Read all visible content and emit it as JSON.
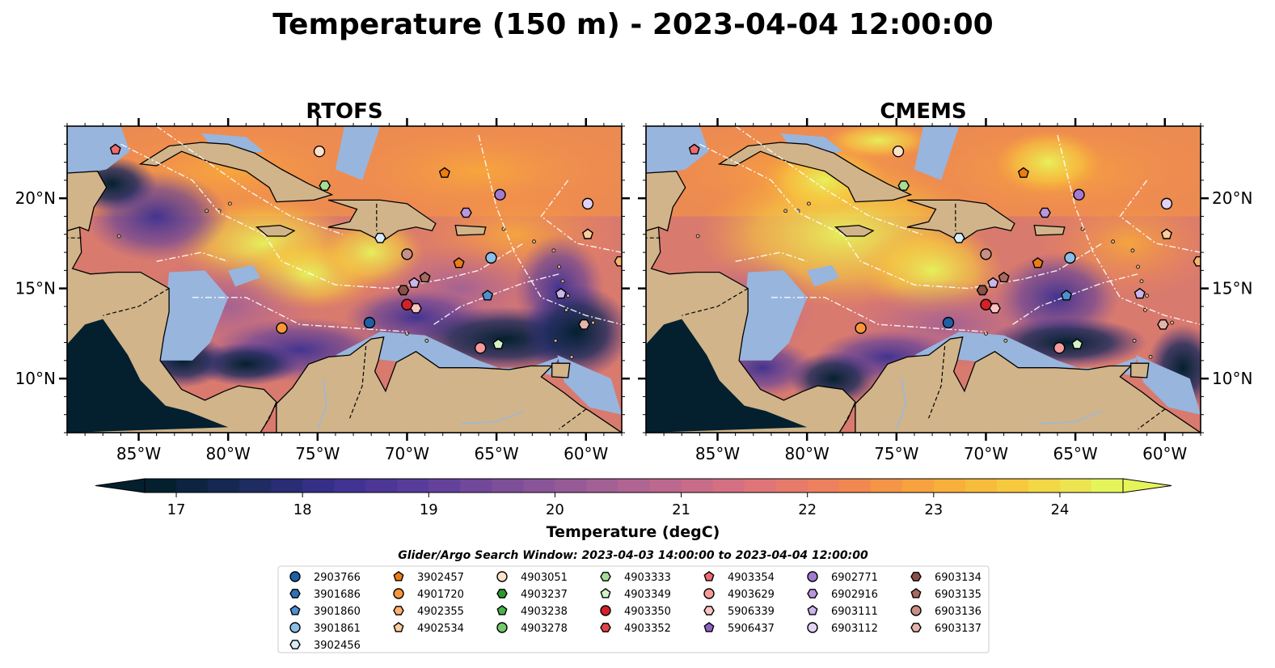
{
  "title": "Temperature (150 m) - 2023-04-04 12:00:00",
  "panels": [
    {
      "title": "RTOFS",
      "variant": "rtofs"
    },
    {
      "title": "CMEMS",
      "variant": "cmems"
    }
  ],
  "axes": {
    "lon_ticks": [
      "85°W",
      "80°W",
      "75°W",
      "70°W",
      "65°W",
      "60°W"
    ],
    "lat_ticks": [
      "20°N",
      "15°N",
      "10°N"
    ],
    "lon_tick_values": [
      -85,
      -80,
      -75,
      -70,
      -65,
      -60
    ],
    "lat_tick_values": [
      20,
      15,
      10
    ],
    "lon_range": [
      -89,
      -58
    ],
    "lat_range": [
      7,
      24
    ]
  },
  "colorbar": {
    "label": "Temperature (degC)",
    "ticks": [
      "17",
      "18",
      "19",
      "20",
      "21",
      "22",
      "23",
      "24"
    ],
    "range": [
      16.5,
      24.75
    ],
    "step": 0.25,
    "extend": "both",
    "colormap": "thermal",
    "colors": [
      "#04202f",
      "#1b2b5d",
      "#3a3091",
      "#5a3d9c",
      "#7c4e99",
      "#9e5f96",
      "#c1698e",
      "#e07478",
      "#f28651",
      "#f8a93a",
      "#f7cc3e",
      "#e6f45c"
    ]
  },
  "legend": {
    "title": "Glider/Argo Search Window: 2023-04-03 14:00:00 to 2023-04-04 12:00:00",
    "columns": [
      [
        {
          "id": "2903766",
          "marker": "circle",
          "color": "#1f5fa8"
        },
        {
          "id": "3901686",
          "marker": "hexagon",
          "color": "#2f72b8"
        },
        {
          "id": "3901860",
          "marker": "pentagon",
          "color": "#4e90cf"
        },
        {
          "id": "3901861",
          "marker": "circle",
          "color": "#89bfe8"
        },
        {
          "id": "3902456",
          "marker": "hexagon",
          "color": "#d6ebf8"
        }
      ],
      [
        {
          "id": "3902457",
          "marker": "pentagon",
          "color": "#ee7d11"
        },
        {
          "id": "4901720",
          "marker": "circle",
          "color": "#f8973a"
        },
        {
          "id": "4902355",
          "marker": "hexagon",
          "color": "#fbb26e"
        },
        {
          "id": "4902534",
          "marker": "pentagon",
          "color": "#fdcc9b"
        }
      ],
      [
        {
          "id": "4903051",
          "marker": "circle",
          "color": "#fde2c8"
        },
        {
          "id": "4903237",
          "marker": "hexagon",
          "color": "#2b9a2f"
        },
        {
          "id": "4903238",
          "marker": "pentagon",
          "color": "#47b548"
        },
        {
          "id": "4903278",
          "marker": "circle",
          "color": "#73cb6a"
        }
      ],
      [
        {
          "id": "4903333",
          "marker": "hexagon",
          "color": "#a4df95"
        },
        {
          "id": "4903349",
          "marker": "pentagon",
          "color": "#d3f3c7"
        },
        {
          "id": "4903350",
          "marker": "circle",
          "color": "#d42027"
        },
        {
          "id": "4903352",
          "marker": "hexagon",
          "color": "#e34449"
        }
      ],
      [
        {
          "id": "4903354",
          "marker": "pentagon",
          "color": "#ef6b6e"
        },
        {
          "id": "4903629",
          "marker": "circle",
          "color": "#f69a9a"
        },
        {
          "id": "5906339",
          "marker": "hexagon",
          "color": "#fbc3c2"
        },
        {
          "id": "5906437",
          "marker": "pentagon",
          "color": "#8f62c4"
        }
      ],
      [
        {
          "id": "6902771",
          "marker": "circle",
          "color": "#a27ad2"
        },
        {
          "id": "6902916",
          "marker": "hexagon",
          "color": "#b897df"
        },
        {
          "id": "6903111",
          "marker": "pentagon",
          "color": "#cdb4ea"
        },
        {
          "id": "6903112",
          "marker": "circle",
          "color": "#e2d3f5"
        }
      ],
      [
        {
          "id": "6903134",
          "marker": "hexagon",
          "color": "#8b5046"
        },
        {
          "id": "6903135",
          "marker": "pentagon",
          "color": "#a86a5f"
        },
        {
          "id": "6903136",
          "marker": "circle",
          "color": "#c88f84"
        },
        {
          "id": "6903137",
          "marker": "hexagon",
          "color": "#e5b4a9"
        }
      ]
    ]
  },
  "chart_data": {
    "type": "heatmap",
    "title": "Temperature (150 m) - 2023-04-04 12:00:00",
    "subplots": [
      "RTOFS",
      "CMEMS"
    ],
    "xlabel": "",
    "ylabel": "",
    "xlim": [
      -89,
      -58
    ],
    "ylim": [
      7,
      24
    ],
    "colorbar_label": "Temperature (degC)",
    "clim": [
      16.5,
      24.75
    ],
    "observations": [
      {
        "id": "4903354",
        "lon": -86.3,
        "lat": 22.7
      },
      {
        "id": "4903051",
        "lon": -74.9,
        "lat": 22.6
      },
      {
        "id": "4903333",
        "lon": -74.6,
        "lat": 20.7
      },
      {
        "id": "3902457",
        "lon": -67.9,
        "lat": 21.4
      },
      {
        "id": "6902771",
        "lon": -64.8,
        "lat": 20.2
      },
      {
        "id": "6902916",
        "lon": -66.7,
        "lat": 19.2
      },
      {
        "id": "6903112",
        "lon": -59.9,
        "lat": 19.7
      },
      {
        "id": "4902534",
        "lon": -59.9,
        "lat": 18.0
      },
      {
        "id": "3902456",
        "lon": -71.5,
        "lat": 17.8
      },
      {
        "id": "6903136",
        "lon": -70.0,
        "lat": 16.9
      },
      {
        "id": "3901861",
        "lon": -65.3,
        "lat": 16.7
      },
      {
        "id": "3902457",
        "lon": -67.1,
        "lat": 16.4
      },
      {
        "id": "6903134",
        "lon": -70.2,
        "lat": 14.9
      },
      {
        "id": "6903111",
        "lon": -69.6,
        "lat": 15.3
      },
      {
        "id": "6903135",
        "lon": -69.0,
        "lat": 15.6
      },
      {
        "id": "3901860",
        "lon": -65.5,
        "lat": 14.6
      },
      {
        "id": "6903111",
        "lon": -61.4,
        "lat": 14.7
      },
      {
        "id": "4903350",
        "lon": -70.0,
        "lat": 14.1
      },
      {
        "id": "5906339",
        "lon": -69.5,
        "lat": 13.9
      },
      {
        "id": "4901720",
        "lon": -77.0,
        "lat": 12.8
      },
      {
        "id": "2903766",
        "lon": -72.1,
        "lat": 13.1
      },
      {
        "id": "6903137",
        "lon": -60.1,
        "lat": 13.0
      },
      {
        "id": "4903629",
        "lon": -65.9,
        "lat": 11.7
      },
      {
        "id": "4903349",
        "lon": -64.9,
        "lat": 11.9
      },
      {
        "id": "4902355",
        "lon": -58.1,
        "lat": 16.5
      }
    ]
  }
}
